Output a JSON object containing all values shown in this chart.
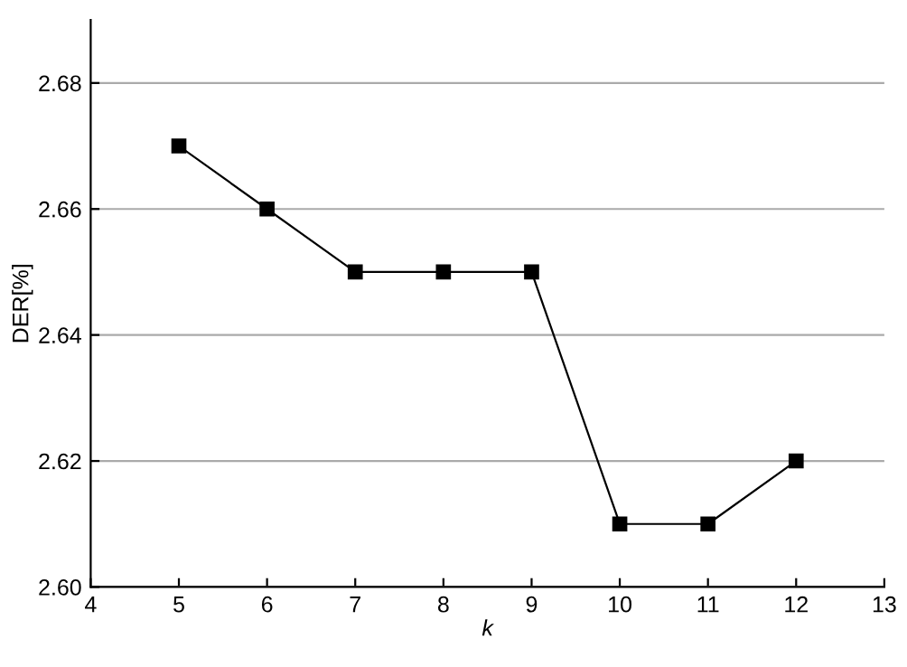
{
  "chart_data": {
    "type": "line",
    "xlabel": "k",
    "ylabel": "DER[%]",
    "x": [
      5,
      6,
      7,
      8,
      9,
      10,
      11,
      12
    ],
    "series": [
      {
        "color": "#000000",
        "values": [
          2.67,
          2.66,
          2.65,
          2.65,
          2.65,
          2.61,
          2.61,
          2.62
        ]
      }
    ],
    "xlim": [
      4,
      13
    ],
    "xticks": [
      4,
      5,
      6,
      7,
      8,
      9,
      10,
      11,
      12,
      13
    ],
    "ylim": [
      2.6,
      2.69
    ],
    "yticks": [
      {
        "value": 2.6,
        "label": "2.60"
      },
      {
        "value": 2.62,
        "label": "2.62"
      },
      {
        "value": 2.64,
        "label": "2.64"
      },
      {
        "value": 2.66,
        "label": "2.66"
      },
      {
        "value": 2.68,
        "label": "2.68"
      }
    ],
    "grid": "y",
    "marker": "square",
    "line_style": "solid"
  }
}
